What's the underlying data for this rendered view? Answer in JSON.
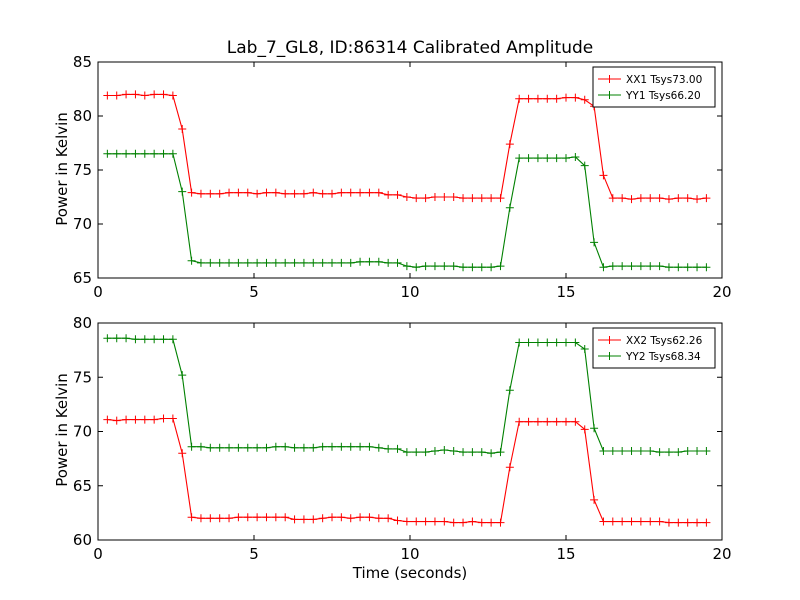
{
  "figure_title": "Lab_7_GL8, ID:86314 Calibrated Amplitude",
  "colors": {
    "xx": "#ff0000",
    "yy": "#008000",
    "axes": "#000000"
  },
  "chart_data": [
    {
      "type": "line",
      "title": "Lab_7_GL8, ID:86314 Calibrated Amplitude",
      "xlabel": "",
      "ylabel": "Power in Kelvin",
      "xlim": [
        0,
        20
      ],
      "ylim": [
        65,
        85
      ],
      "xticks": [
        0,
        5,
        10,
        15,
        20
      ],
      "yticks": [
        65,
        70,
        75,
        80,
        85
      ],
      "grid": false,
      "legend": "top-right",
      "x": [
        0.3,
        0.6,
        0.9,
        1.2,
        1.5,
        1.8,
        2.1,
        2.4,
        2.7,
        3.0,
        3.3,
        3.6,
        3.9,
        4.2,
        4.5,
        4.8,
        5.1,
        5.4,
        5.7,
        6.0,
        6.3,
        6.6,
        6.9,
        7.2,
        7.5,
        7.8,
        8.1,
        8.4,
        8.7,
        9.0,
        9.3,
        9.6,
        9.9,
        10.2,
        10.5,
        10.8,
        11.1,
        11.4,
        11.7,
        12.0,
        12.3,
        12.6,
        12.9,
        13.2,
        13.5,
        13.8,
        14.1,
        14.4,
        14.7,
        15.0,
        15.3,
        15.6,
        15.9,
        16.2,
        16.5,
        16.8,
        17.1,
        17.4,
        17.7,
        18.0,
        18.3,
        18.6,
        18.9,
        19.2,
        19.5
      ],
      "series": [
        {
          "name": "XX1 Tsys73.00",
          "color": "#ff0000",
          "values": [
            81.9,
            81.9,
            82.0,
            82.0,
            81.9,
            82.0,
            82.0,
            81.9,
            78.8,
            72.9,
            72.8,
            72.8,
            72.8,
            72.9,
            72.9,
            72.9,
            72.8,
            72.9,
            72.9,
            72.8,
            72.8,
            72.8,
            72.9,
            72.8,
            72.8,
            72.9,
            72.9,
            72.9,
            72.9,
            72.9,
            72.7,
            72.7,
            72.5,
            72.4,
            72.4,
            72.5,
            72.5,
            72.5,
            72.4,
            72.4,
            72.4,
            72.4,
            72.4,
            77.4,
            81.6,
            81.6,
            81.6,
            81.6,
            81.6,
            81.7,
            81.7,
            81.5,
            80.9,
            74.5,
            72.4,
            72.4,
            72.3,
            72.4,
            72.4,
            72.4,
            72.3,
            72.4,
            72.4,
            72.3,
            72.4
          ]
        },
        {
          "name": "YY1 Tsys66.20",
          "color": "#008000",
          "values": [
            76.5,
            76.5,
            76.5,
            76.5,
            76.5,
            76.5,
            76.5,
            76.5,
            73.0,
            66.6,
            66.4,
            66.4,
            66.4,
            66.4,
            66.4,
            66.4,
            66.4,
            66.4,
            66.4,
            66.4,
            66.4,
            66.4,
            66.4,
            66.4,
            66.4,
            66.4,
            66.4,
            66.5,
            66.5,
            66.5,
            66.4,
            66.4,
            66.1,
            66.0,
            66.1,
            66.1,
            66.1,
            66.1,
            66.0,
            66.0,
            66.0,
            66.0,
            66.1,
            71.5,
            76.1,
            76.1,
            76.1,
            76.1,
            76.1,
            76.1,
            76.2,
            75.4,
            68.3,
            66.0,
            66.1,
            66.1,
            66.1,
            66.1,
            66.1,
            66.1,
            66.0,
            66.0,
            66.0,
            66.0,
            66.0
          ]
        }
      ]
    },
    {
      "type": "line",
      "title": "",
      "xlabel": "Time (seconds)",
      "ylabel": "Power in Kelvin",
      "xlim": [
        0,
        20
      ],
      "ylim": [
        60,
        80
      ],
      "xticks": [
        0,
        5,
        10,
        15,
        20
      ],
      "yticks": [
        60,
        65,
        70,
        75,
        80
      ],
      "grid": false,
      "legend": "top-right",
      "x": [
        0.3,
        0.6,
        0.9,
        1.2,
        1.5,
        1.8,
        2.1,
        2.4,
        2.7,
        3.0,
        3.3,
        3.6,
        3.9,
        4.2,
        4.5,
        4.8,
        5.1,
        5.4,
        5.7,
        6.0,
        6.3,
        6.6,
        6.9,
        7.2,
        7.5,
        7.8,
        8.1,
        8.4,
        8.7,
        9.0,
        9.3,
        9.6,
        9.9,
        10.2,
        10.5,
        10.8,
        11.1,
        11.4,
        11.7,
        12.0,
        12.3,
        12.6,
        12.9,
        13.2,
        13.5,
        13.8,
        14.1,
        14.4,
        14.7,
        15.0,
        15.3,
        15.6,
        15.9,
        16.2,
        16.5,
        16.8,
        17.1,
        17.4,
        17.7,
        18.0,
        18.3,
        18.6,
        18.9,
        19.2,
        19.5
      ],
      "series": [
        {
          "name": "XX2 Tsys62.26",
          "color": "#ff0000",
          "values": [
            71.1,
            71.0,
            71.1,
            71.1,
            71.1,
            71.1,
            71.2,
            71.2,
            68.0,
            62.1,
            62.0,
            62.0,
            62.0,
            62.0,
            62.1,
            62.1,
            62.1,
            62.1,
            62.1,
            62.1,
            61.9,
            61.9,
            61.9,
            62.0,
            62.1,
            62.1,
            62.0,
            62.1,
            62.1,
            62.0,
            62.0,
            61.8,
            61.7,
            61.7,
            61.7,
            61.7,
            61.7,
            61.6,
            61.6,
            61.7,
            61.6,
            61.6,
            61.6,
            66.7,
            70.9,
            70.9,
            70.9,
            70.9,
            70.9,
            70.9,
            70.9,
            70.2,
            63.7,
            61.7,
            61.7,
            61.7,
            61.7,
            61.7,
            61.7,
            61.7,
            61.6,
            61.6,
            61.6,
            61.6,
            61.6
          ]
        },
        {
          "name": "YY2 Tsys68.34",
          "color": "#008000",
          "values": [
            78.6,
            78.6,
            78.6,
            78.5,
            78.5,
            78.5,
            78.5,
            78.5,
            75.2,
            68.6,
            68.6,
            68.5,
            68.5,
            68.5,
            68.5,
            68.5,
            68.5,
            68.5,
            68.6,
            68.6,
            68.5,
            68.5,
            68.5,
            68.6,
            68.6,
            68.6,
            68.6,
            68.6,
            68.6,
            68.5,
            68.4,
            68.4,
            68.1,
            68.1,
            68.1,
            68.2,
            68.3,
            68.2,
            68.1,
            68.1,
            68.1,
            68.0,
            68.1,
            73.8,
            78.2,
            78.2,
            78.2,
            78.2,
            78.2,
            78.2,
            78.2,
            77.6,
            70.3,
            68.2,
            68.2,
            68.2,
            68.2,
            68.2,
            68.2,
            68.1,
            68.1,
            68.1,
            68.2,
            68.2,
            68.2
          ]
        }
      ]
    }
  ]
}
